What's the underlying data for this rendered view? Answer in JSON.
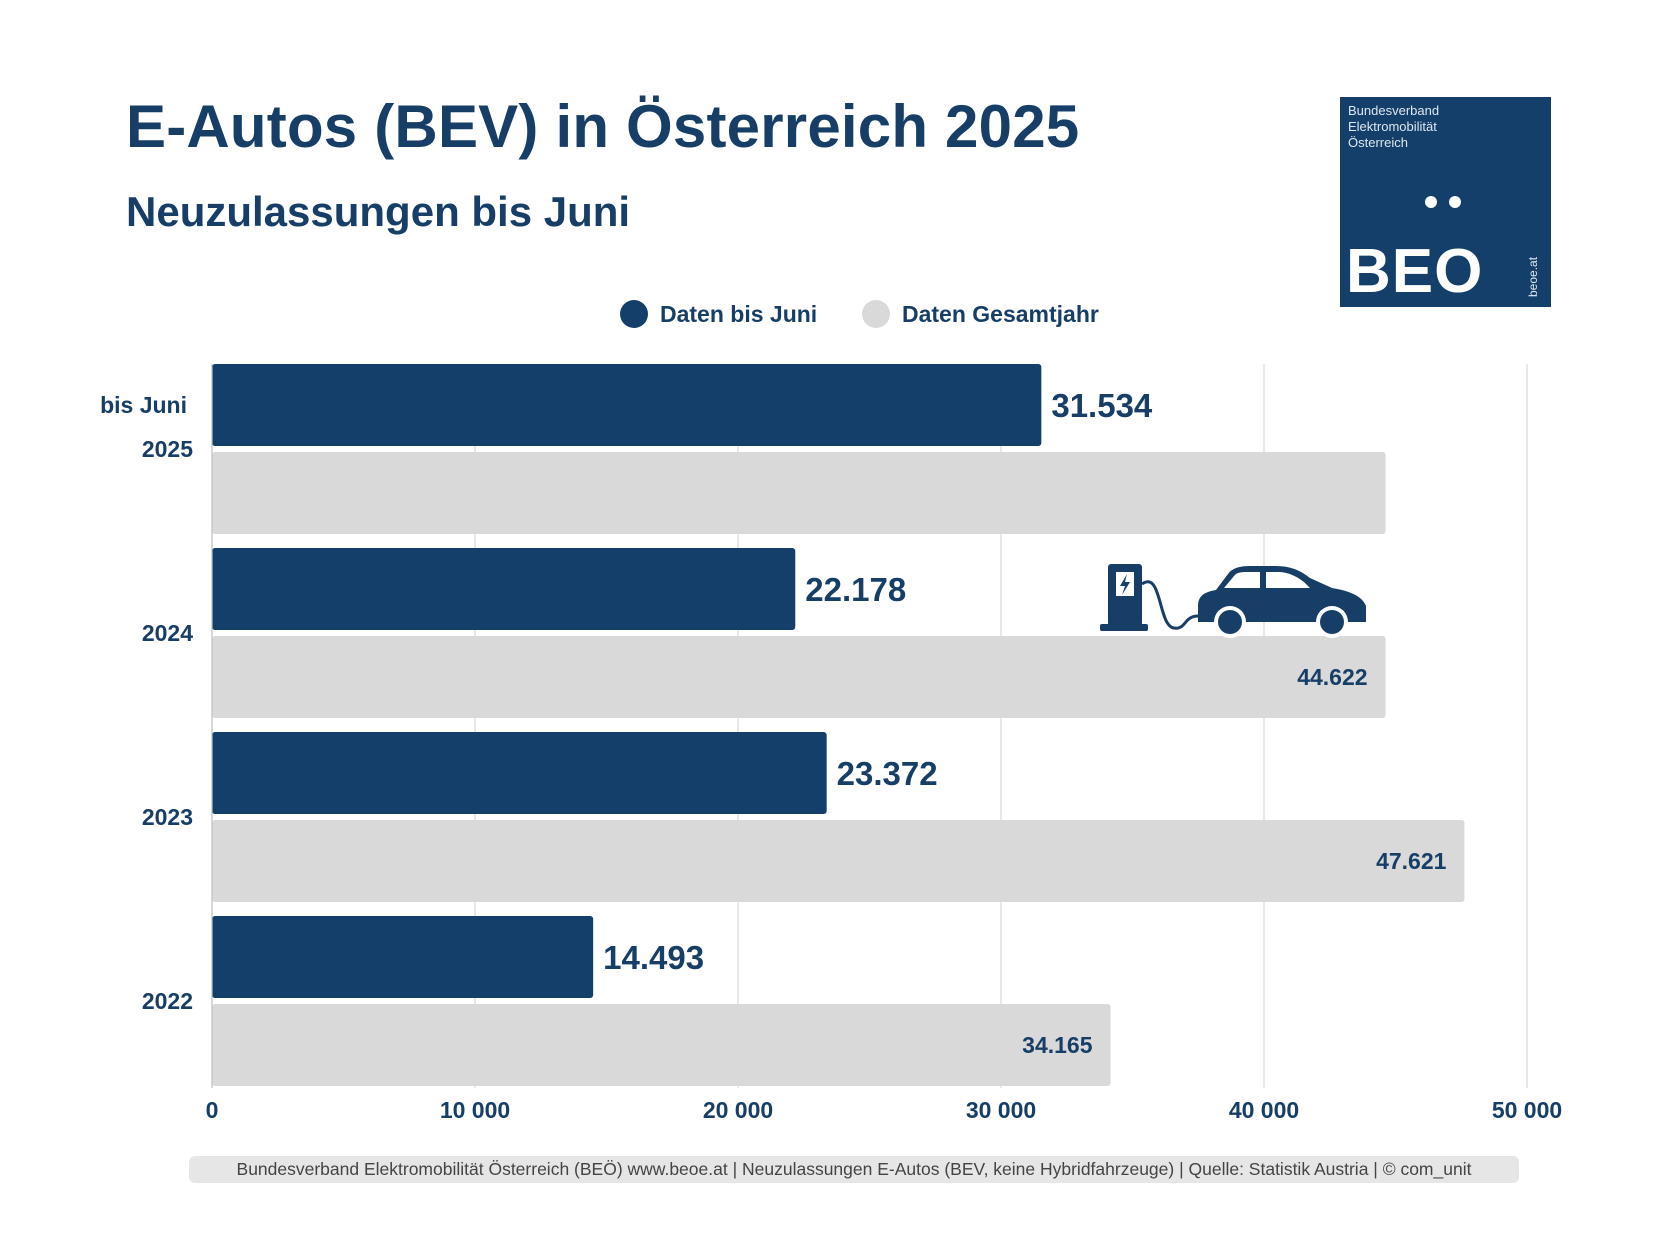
{
  "header": {
    "title": "E-Autos (BEV) in Österreich 2025",
    "subtitle": "Neuzulassungen bis Juni"
  },
  "logo": {
    "line1": "Bundesverband",
    "line2": "Elektromobilität",
    "line3": "Österreich",
    "brand": "BEO",
    "url": "beoe.at"
  },
  "legend": {
    "items": [
      {
        "label": "Daten bis Juni",
        "color": "#133f6a"
      },
      {
        "label": "Daten Gesamtjahr",
        "color": "#d9d9d9"
      }
    ]
  },
  "chart_data": {
    "type": "bar",
    "orientation": "horizontal",
    "categories": [
      "2025",
      "2024",
      "2023",
      "2022"
    ],
    "category_note": "bis Juni",
    "series": [
      {
        "name": "Daten bis Juni",
        "color": "#133f6a",
        "values": [
          31534,
          22178,
          23372,
          14493
        ],
        "labels": [
          "31.534",
          "22.178",
          "23.372",
          "14.493"
        ]
      },
      {
        "name": "Daten Gesamtjahr",
        "color": "#d9d9d9",
        "values": [
          44622,
          44622,
          47621,
          34165
        ],
        "labels": [
          "",
          "44.622",
          "47.621",
          "34.165"
        ]
      }
    ],
    "xlim": [
      0,
      50000
    ],
    "xticks": [
      0,
      10000,
      20000,
      30000,
      40000,
      50000
    ],
    "xtick_labels": [
      "0",
      "10 000",
      "20 000",
      "30 000",
      "40 000",
      "50 000"
    ],
    "grid": true,
    "legend_position": "top-center",
    "annotation": "ev-charging-car-icon"
  },
  "footer": {
    "text": "Bundesverband Elektromobilität Österreich (BEÖ) www.beoe.at | Neuzulassungen E-Autos (BEV, keine Hybridfahrzeuge) | Quelle: Statistik Austria | © com_unit"
  }
}
